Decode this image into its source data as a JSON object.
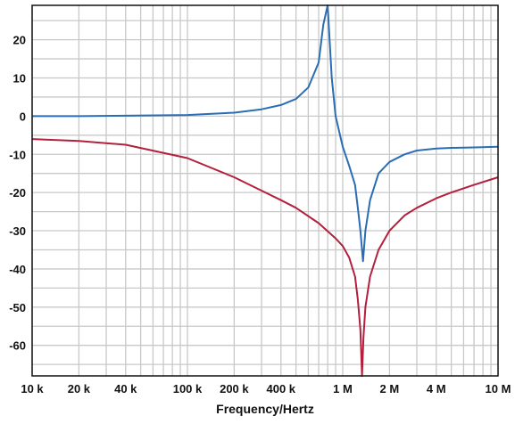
{
  "chart_data": {
    "type": "line",
    "title": "",
    "xlabel": "Frequency/Hertz",
    "ylabel": "",
    "x_scale": "log",
    "xlim": [
      10000,
      10000000
    ],
    "ylim": [
      -68,
      29
    ],
    "grid": true,
    "x_ticks": [
      {
        "value": 10000,
        "label": "10 k"
      },
      {
        "value": 20000,
        "label": "20 k"
      },
      {
        "value": 40000,
        "label": "40 k"
      },
      {
        "value": 100000,
        "label": "100 k"
      },
      {
        "value": 200000,
        "label": "200 k"
      },
      {
        "value": 400000,
        "label": "400 k"
      },
      {
        "value": 1000000,
        "label": "1 M"
      },
      {
        "value": 2000000,
        "label": "2 M"
      },
      {
        "value": 4000000,
        "label": "4 M"
      },
      {
        "value": 10000000,
        "label": "10 M"
      }
    ],
    "y_ticks": [
      {
        "value": 20,
        "label": "20"
      },
      {
        "value": 10,
        "label": "10"
      },
      {
        "value": 0,
        "label": "0"
      },
      {
        "value": -10,
        "label": "-10"
      },
      {
        "value": -20,
        "label": "-20"
      },
      {
        "value": -30,
        "label": "-30"
      },
      {
        "value": -40,
        "label": "-40"
      },
      {
        "value": -50,
        "label": "-50"
      },
      {
        "value": -60,
        "label": "-60"
      }
    ],
    "series": [
      {
        "color": "#2a6db5",
        "x": [
          10000,
          20000,
          40000,
          100000,
          200000,
          300000,
          400000,
          500000,
          600000,
          700000,
          750000,
          800000,
          850000,
          900000,
          1000000,
          1100000,
          1200000,
          1250000,
          1300000,
          1350000,
          1400000,
          1500000,
          1700000,
          2000000,
          2500000,
          3000000,
          4000000,
          5000000,
          7000000,
          10000000
        ],
        "y": [
          0,
          0,
          0.1,
          0.3,
          0.9,
          1.8,
          2.9,
          4.5,
          7.5,
          14,
          24,
          29,
          10,
          0,
          -8,
          -13,
          -18,
          -24,
          -30,
          -38,
          -30,
          -22,
          -15,
          -12,
          -10,
          -9,
          -8.5,
          -8.3,
          -8.2,
          -8
        ]
      },
      {
        "color": "#b3203e",
        "x": [
          10000,
          20000,
          40000,
          100000,
          200000,
          300000,
          400000,
          500000,
          700000,
          900000,
          1000000,
          1100000,
          1200000,
          1250000,
          1300000,
          1330000,
          1360000,
          1400000,
          1500000,
          1700000,
          2000000,
          2500000,
          3000000,
          4000000,
          5000000,
          7000000,
          10000000
        ],
        "y": [
          -6,
          -6.5,
          -7.5,
          -11,
          -16,
          -19.5,
          -22,
          -24,
          -28,
          -32,
          -34,
          -37,
          -42,
          -48,
          -56,
          -68,
          -58,
          -50,
          -42,
          -35,
          -30,
          -26,
          -24,
          -21.5,
          -20,
          -18,
          -16
        ]
      }
    ]
  }
}
